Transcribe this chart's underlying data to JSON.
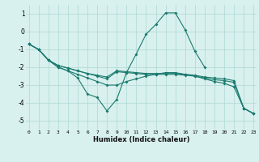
{
  "x": [
    0,
    1,
    2,
    3,
    4,
    5,
    6,
    7,
    8,
    9,
    10,
    11,
    12,
    13,
    14,
    15,
    16,
    17,
    18,
    19,
    20,
    21,
    22,
    23
  ],
  "curve_main": [
    -0.7,
    -1.0,
    -1.6,
    -2.0,
    -2.2,
    -2.6,
    -3.5,
    -3.7,
    -4.45,
    -3.8,
    -2.3,
    -1.25,
    -0.15,
    0.4,
    1.05,
    1.05,
    0.1,
    -1.1,
    -2.0,
    null,
    null,
    null,
    null,
    null
  ],
  "curve_a": [
    -0.7,
    -1.0,
    -1.6,
    -1.9,
    -2.05,
    -2.2,
    -2.35,
    -2.45,
    -2.55,
    -2.2,
    -2.25,
    -2.3,
    -2.35,
    -2.35,
    -2.35,
    -2.35,
    -2.4,
    -2.45,
    -2.55,
    -2.6,
    -2.65,
    -2.75,
    -4.3,
    -4.6
  ],
  "curve_b": [
    -0.7,
    -1.0,
    -1.6,
    -1.9,
    -2.05,
    -2.2,
    -2.35,
    -2.5,
    -2.65,
    -2.25,
    -2.3,
    -2.35,
    -2.4,
    -2.4,
    -2.4,
    -2.4,
    -2.45,
    -2.5,
    -2.6,
    -2.7,
    -2.75,
    -2.85,
    -4.3,
    -4.6
  ],
  "curve_c": [
    -0.7,
    -1.0,
    -1.6,
    -2.0,
    -2.2,
    -2.4,
    -2.6,
    -2.8,
    -3.0,
    -3.0,
    -2.8,
    -2.65,
    -2.5,
    -2.4,
    -2.3,
    -2.3,
    -2.4,
    -2.5,
    -2.65,
    -2.8,
    -2.9,
    -3.1,
    -4.3,
    -4.6
  ],
  "color": "#1a7a6e",
  "bg_color": "#d8f0ee",
  "grid_color": "#aed8d4",
  "xlabel": "Humidex (Indice chaleur)",
  "ylim": [
    -5.5,
    1.5
  ],
  "xlim": [
    -0.3,
    23.3
  ],
  "yticks": [
    -5,
    -4,
    -3,
    -2,
    -1,
    0,
    1
  ],
  "xticks": [
    0,
    1,
    2,
    3,
    4,
    5,
    6,
    7,
    8,
    9,
    10,
    11,
    12,
    13,
    14,
    15,
    16,
    17,
    18,
    19,
    20,
    21,
    22,
    23
  ]
}
